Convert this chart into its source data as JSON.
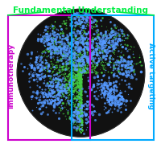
{
  "title": "Fundamental Understanding",
  "left_label": "Immunotherapy",
  "right_label": "Active targeting",
  "title_color": "#00ee44",
  "left_label_color": "#cc00cc",
  "right_label_color": "#00aaff",
  "left_box_color": "#cc00cc",
  "right_box_color": "#00aaff",
  "top_line_color": "#00ee44",
  "bg_color": "#ffffff",
  "fig_width": 2.01,
  "fig_height": 1.89,
  "dpi": 100
}
